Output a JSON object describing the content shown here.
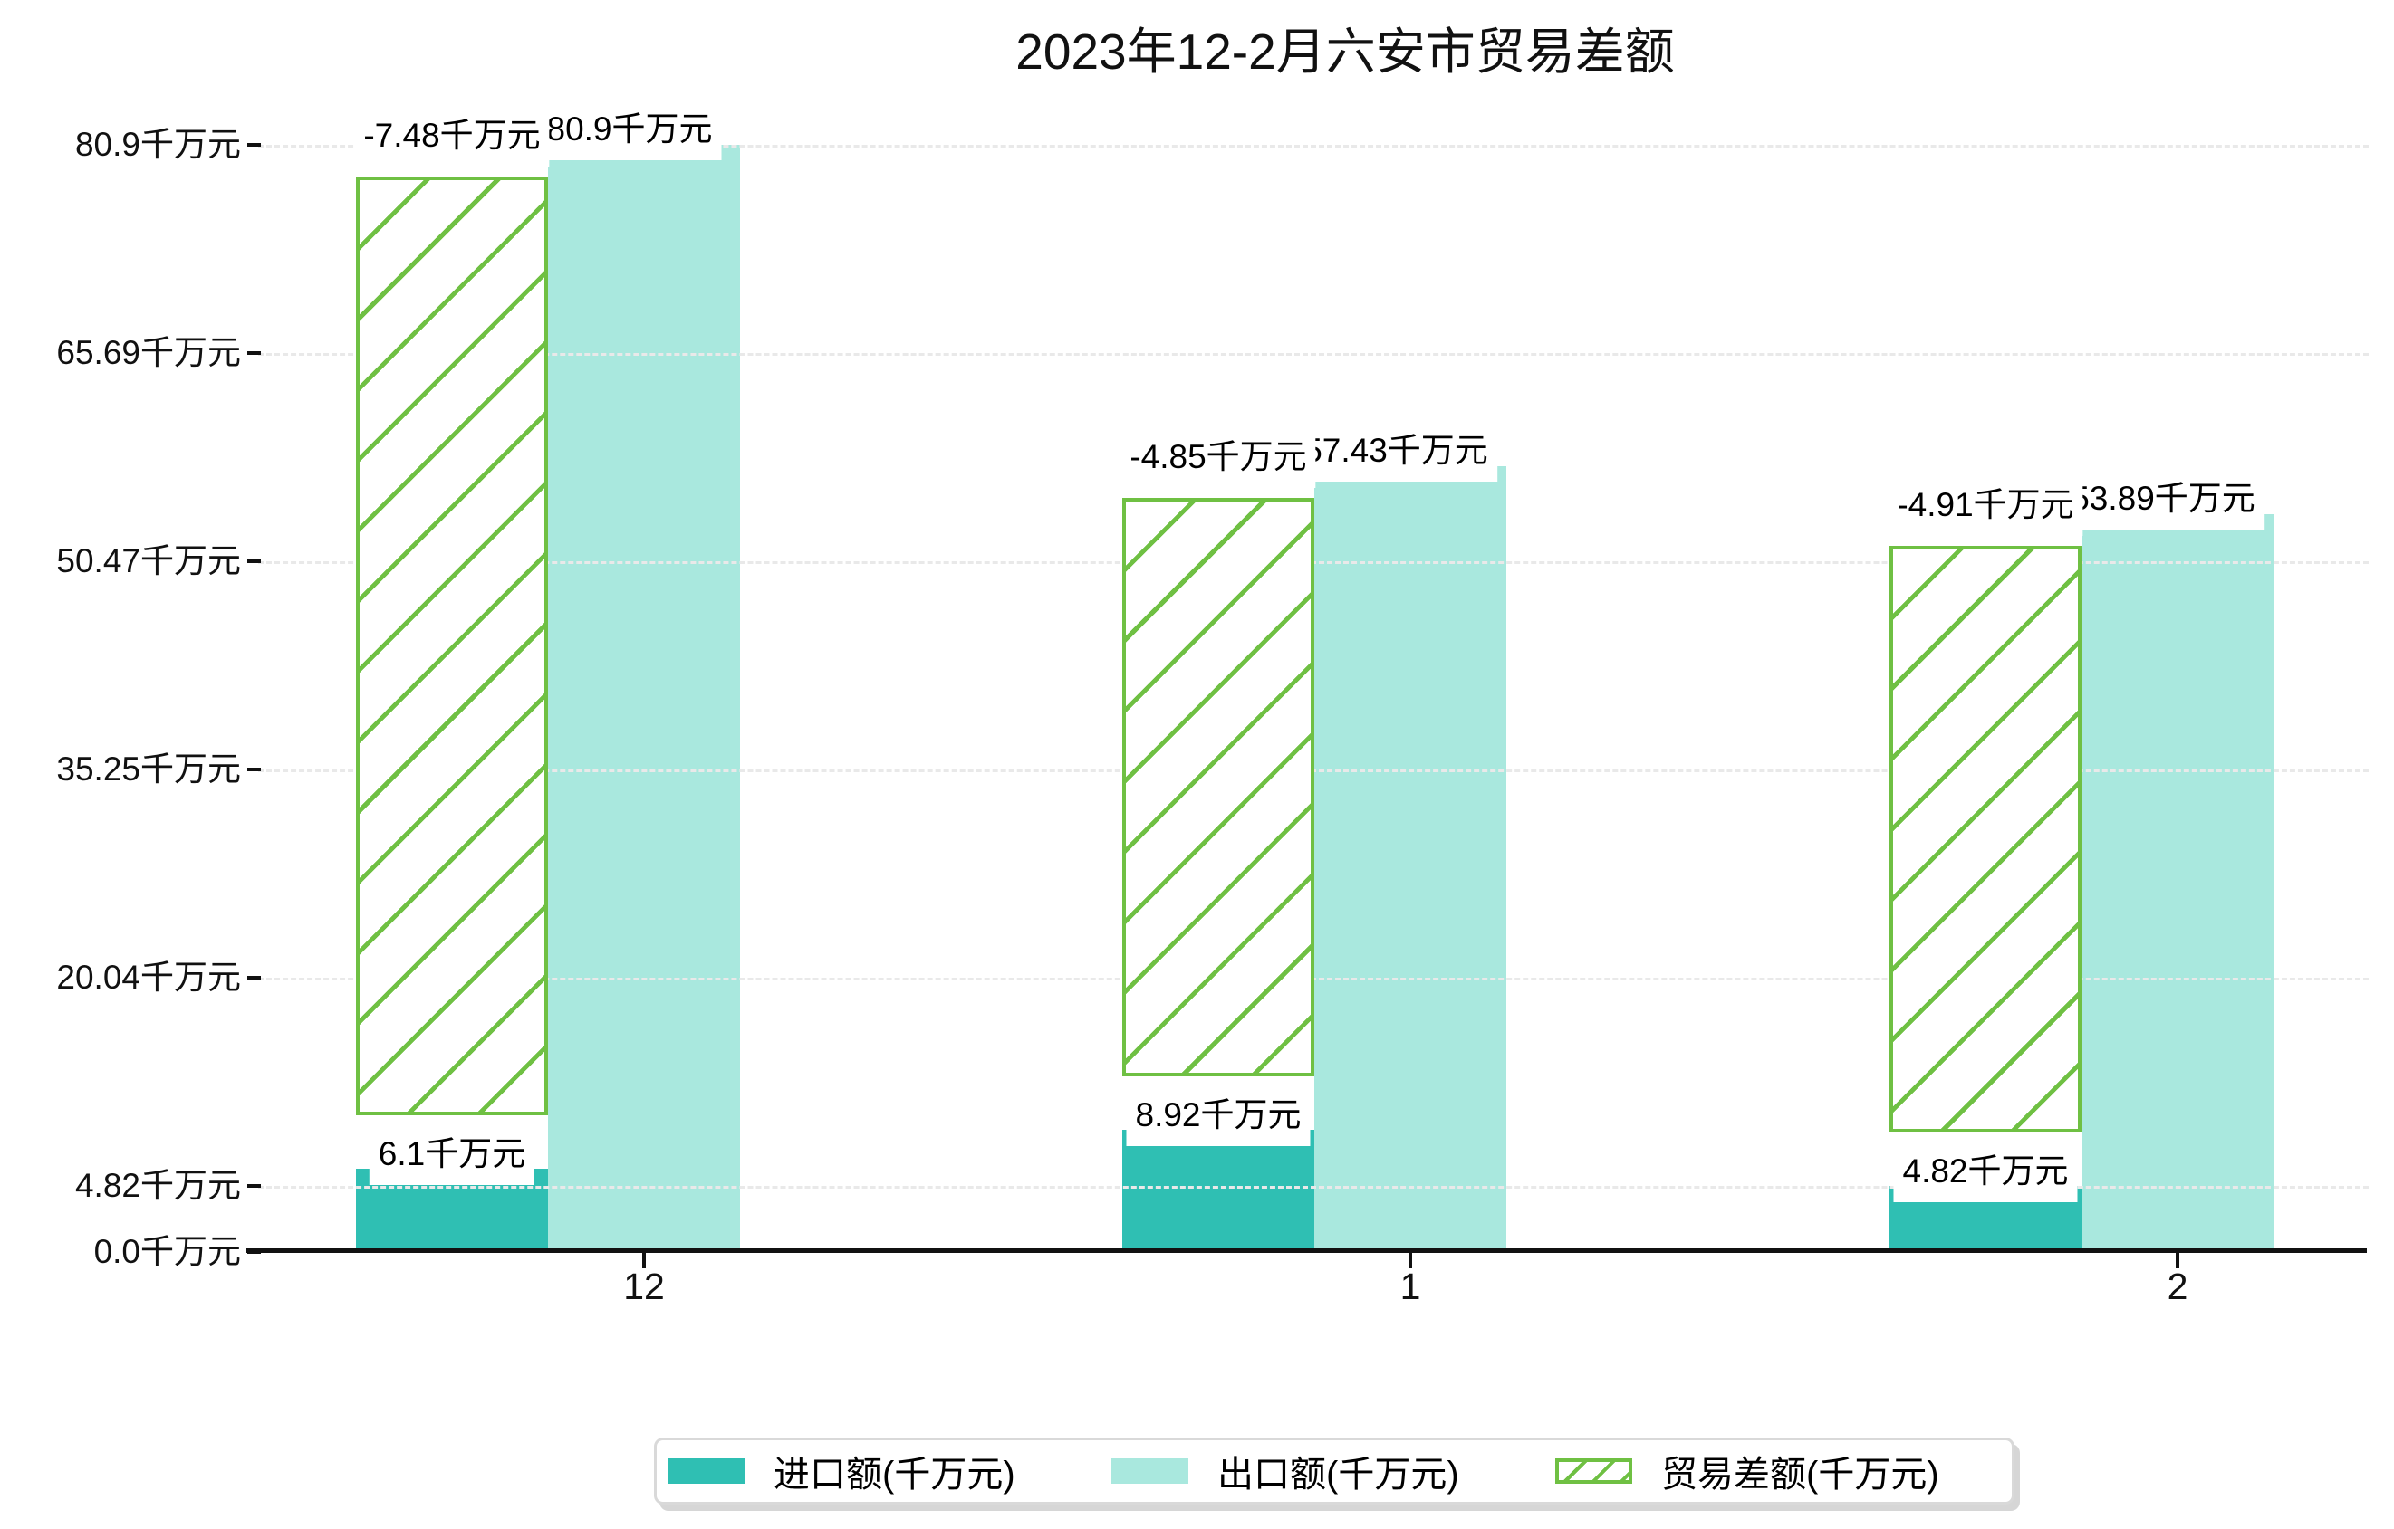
{
  "title": "2023年12-2月六安市贸易差额",
  "colors": {
    "import_bar": "#2fbfb3",
    "export_bar": "#a9e8de",
    "balance_hatch": "#6fc043",
    "grid": "#e9e9e9",
    "axis": "#111111",
    "label_background": "#ffffff",
    "text": "#000000"
  },
  "chart_data": {
    "type": "bar",
    "title": "2023年12-2月六安市贸易差额",
    "categories": [
      "12",
      "1",
      "2"
    ],
    "unit": "千万元",
    "series": [
      {
        "name": "进口额(千万元)",
        "values": [
          6.1,
          8.92,
          4.82
        ],
        "data_labels": [
          "6.1千万元",
          "8.92千万元",
          "4.82千万元"
        ],
        "color": "#2fbfb3",
        "style": "solid"
      },
      {
        "name": "出口额(千万元)",
        "values": [
          80.9,
          57.43,
          53.89
        ],
        "data_labels": [
          "80.9千万元",
          "57.43千万元",
          "53.89千万元"
        ],
        "color": "#a9e8de",
        "style": "solid"
      },
      {
        "name": "贸易差额(千万元)",
        "values": [
          -7.48,
          -4.85,
          -4.91
        ],
        "data_labels": [
          "-7.48千万元",
          "-4.85千万元",
          "-4.91千万元"
        ],
        "color": "#6fc043",
        "style": "hatched",
        "rendered_spans": [
          [
            10.0,
            78.6
          ],
          [
            12.8,
            55.1
          ],
          [
            8.7,
            51.6
          ]
        ]
      }
    ],
    "yticks": [
      {
        "value": 0,
        "label": "0.0千万元"
      },
      {
        "value": 4.82,
        "label": "4.82千万元"
      },
      {
        "value": 20.04,
        "label": "20.04千万元"
      },
      {
        "value": 35.25,
        "label": "35.25千万元"
      },
      {
        "value": 50.47,
        "label": "50.47千万元"
      },
      {
        "value": 65.69,
        "label": "65.69千万元"
      },
      {
        "value": 80.9,
        "label": "80.9千万元"
      }
    ],
    "ylim": [
      0,
      80.9
    ],
    "grid": true,
    "legend_position": "bottom"
  },
  "legend": {
    "items": [
      {
        "label": "进口额(千万元)",
        "swatch": "import"
      },
      {
        "label": "出口额(千万元)",
        "swatch": "export"
      },
      {
        "label": "贸易差额(千万元)",
        "swatch": "balance-hatched"
      }
    ]
  }
}
